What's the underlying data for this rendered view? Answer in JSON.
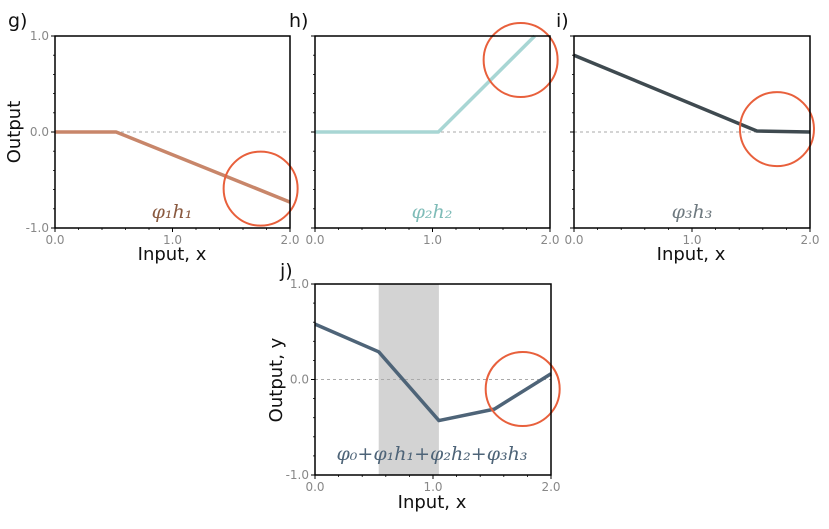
{
  "chart_data": [
    {
      "type": "line",
      "panel_label": "g)",
      "curve_label": "φ₁h₁",
      "xlabel": "Input, x",
      "ylabel": "Output",
      "xlim": [
        0,
        2
      ],
      "ylim": [
        -1,
        1
      ],
      "xticks": [
        "0.0",
        "1.0",
        "2.0"
      ],
      "yticks": [
        "-1.0",
        "0.0",
        "1.0"
      ],
      "color": "#c8866a",
      "label_color": "#8a5a40",
      "x": [
        0.0,
        0.52,
        2.0
      ],
      "y": [
        0.0,
        0.0,
        -0.73
      ],
      "circle": {
        "x": 1.75,
        "y": -0.59
      }
    },
    {
      "type": "line",
      "panel_label": "h)",
      "curve_label": "φ₂h₂",
      "xlabel": "",
      "ylabel": "",
      "xlim": [
        0,
        2
      ],
      "ylim": [
        -1,
        1
      ],
      "xticks": [
        "0.0",
        "1.0",
        "2.0"
      ],
      "yticks": [],
      "color": "#a8d6d4",
      "label_color": "#7fbcb8",
      "x": [
        0.0,
        1.05,
        1.87
      ],
      "y": [
        0.0,
        0.0,
        1.0
      ],
      "circle": {
        "x": 1.75,
        "y": 0.75
      }
    },
    {
      "type": "line",
      "panel_label": "i)",
      "curve_label": "φ₃h₃",
      "xlabel": "Input, x",
      "ylabel": "",
      "xlim": [
        0,
        2
      ],
      "ylim": [
        -1,
        1
      ],
      "xticks": [
        "0.0",
        "1.0",
        "2.0"
      ],
      "yticks": [],
      "color": "#3f4a50",
      "label_color": "#6f7a80",
      "x": [
        0.0,
        1.55,
        2.0
      ],
      "y": [
        0.8,
        0.01,
        0.0
      ],
      "circle": {
        "x": 1.72,
        "y": 0.03
      }
    },
    {
      "type": "line",
      "panel_label": "j)",
      "curve_label": "φ₀+φ₁h₁+φ₂h₂+φ₃h₃",
      "xlabel": "Input, x",
      "ylabel": "Output, y",
      "xlim": [
        0,
        2
      ],
      "ylim": [
        -1,
        1
      ],
      "xticks": [
        "0.0",
        "1.0",
        "2.0"
      ],
      "yticks": [
        "-1.0",
        "0.0",
        "1.0"
      ],
      "color": "#4e6478",
      "label_color": "#4e6478",
      "x": [
        0.0,
        0.54,
        1.05,
        1.52,
        2.0
      ],
      "y": [
        0.58,
        0.29,
        -0.43,
        -0.31,
        0.06
      ],
      "shaded_region": [
        0.54,
        1.05
      ],
      "circle": {
        "x": 1.76,
        "y": -0.1
      }
    }
  ]
}
